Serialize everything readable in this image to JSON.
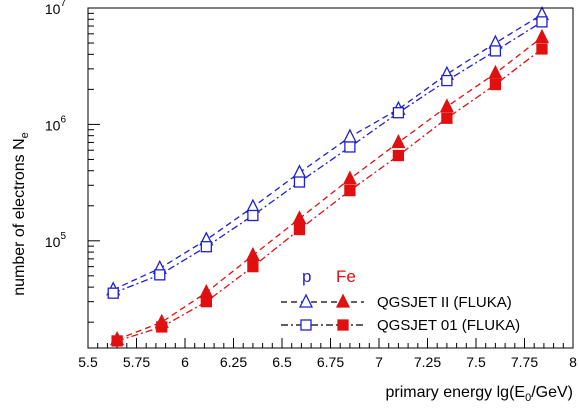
{
  "chart_data": {
    "type": "scatter",
    "xlabel_main": "primary energy lg(E",
    "xlabel_sub": "0",
    "xlabel_end": "/GeV)",
    "ylabel_main": "number of electrons N",
    "ylabel_sub": "e",
    "xlim": [
      5.5,
      8
    ],
    "ylim": [
      12000,
      10000000
    ],
    "y_scale": "log",
    "x_ticks": [
      "5.5",
      "5.75",
      "6",
      "6.25",
      "6.5",
      "6.75",
      "7",
      "7.25",
      "7.5",
      "7.75",
      "8"
    ],
    "y_ticks": [
      {
        "value": 100000,
        "base": "10",
        "exp": "5"
      },
      {
        "value": 1000000,
        "base": "10",
        "exp": "6"
      },
      {
        "value": 10000000,
        "base": "10",
        "exp": "7"
      }
    ],
    "legend": {
      "header_p": "p",
      "header_fe": "Fe",
      "label_qgsjet2": "QGSJET II (FLUKA)",
      "label_qgsjet01": "QGSJET 01 (FLUKA)",
      "placement": "bottom-right"
    },
    "series": [
      {
        "key": "p_qgsjet2",
        "color": "#1f1fd6",
        "marker": "open-triangle",
        "line": "dash",
        "x": [
          5.63,
          5.87,
          6.11,
          6.35,
          6.59,
          6.85,
          7.1,
          7.35,
          7.6,
          7.84
        ],
        "y": [
          38000,
          58000,
          102000,
          195000,
          385000,
          780000,
          1350000,
          2700000,
          5000000,
          8800000
        ]
      },
      {
        "key": "p_qgsjet01",
        "color": "#1f1fd6",
        "marker": "open-square",
        "line": "dashdot",
        "x": [
          5.63,
          5.87,
          6.11,
          6.35,
          6.59,
          6.85,
          7.1,
          7.35,
          7.6,
          7.84
        ],
        "y": [
          35500,
          51000,
          89000,
          165000,
          320000,
          640000,
          1260000,
          2380000,
          4280000,
          7600000
        ]
      },
      {
        "key": "fe_qgsjet2",
        "color": "#e01010",
        "marker": "filled-triangle",
        "line": "dash",
        "x": [
          5.65,
          5.88,
          6.11,
          6.35,
          6.59,
          6.85,
          7.1,
          7.35,
          7.6,
          7.84
        ],
        "y": [
          14200,
          20000,
          36000,
          75000,
          155000,
          340000,
          700000,
          1420000,
          2750000,
          5600000
        ]
      },
      {
        "key": "fe_qgsjet01",
        "color": "#e01010",
        "marker": "filled-square",
        "line": "dashdot",
        "x": [
          5.65,
          5.88,
          6.11,
          6.35,
          6.59,
          6.85,
          7.1,
          7.35,
          7.6,
          7.84
        ],
        "y": [
          13800,
          18200,
          30000,
          60000,
          125000,
          270000,
          540000,
          1130000,
          2200000,
          4450000
        ]
      }
    ]
  }
}
